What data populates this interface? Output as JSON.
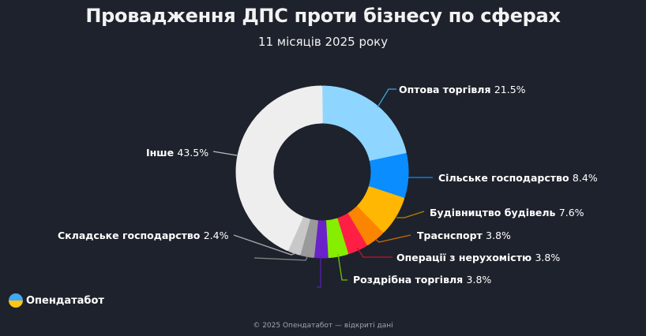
{
  "header": {
    "title": "Провадження ДПС проти бізнесу по сферах",
    "subtitle": "11 місяців 2025 року"
  },
  "logo": {
    "icon": "opendatabot-logo-icon",
    "text": "Опендатабот"
  },
  "footer": {
    "text": "© 2025 Опендатабот — відкриті дані"
  },
  "chart_data": {
    "type": "pie",
    "subtype": "donut",
    "title": "Провадження ДПС проти бізнесу по сферах",
    "subtitle": "11 місяців 2025 року",
    "unit": "%",
    "slices": [
      {
        "label": "Оптова торгівля",
        "value": 21.5,
        "color": "#8ed6ff",
        "pct_text": "21.5%"
      },
      {
        "label": "Сільське господарство",
        "value": 8.4,
        "color": "#0a8dff",
        "pct_text": "8.4%"
      },
      {
        "label": "Будівництво будівель",
        "value": 7.6,
        "color": "#ffb703",
        "pct_text": "7.6%"
      },
      {
        "label": "Траснспорт",
        "value": 3.8,
        "color": "#fb8500",
        "pct_text": "3.8%"
      },
      {
        "label": "Операції з нерухомістю",
        "value": 3.8,
        "color": "#ff1f45",
        "pct_text": "3.8%"
      },
      {
        "label": "Роздрібна торгівля",
        "value": 3.8,
        "color": "#86ee00",
        "pct_text": "3.8%"
      },
      {
        "label": "",
        "value": 2.6,
        "color": "#6a22c9",
        "pct_text": ""
      },
      {
        "label": "",
        "value": 2.6,
        "color": "#9a9a9a",
        "pct_text": ""
      },
      {
        "label": "Складське господарство",
        "value": 2.4,
        "color": "#c8c8c8",
        "pct_text": "2.4%"
      },
      {
        "label": "Інше",
        "value": 43.5,
        "color": "#eeeeee",
        "pct_text": "43.5%"
      }
    ]
  },
  "labels": [
    {
      "name": "Оптова торгівля",
      "pct": "21.5%"
    },
    {
      "name": "Сільське господарство",
      "pct": "8.4%"
    },
    {
      "name": "Будівництво будівель",
      "pct": "7.6%"
    },
    {
      "name": "Траснспорт",
      "pct": "3.8%"
    },
    {
      "name": "Операції з нерухомістю",
      "pct": "3.8%"
    },
    {
      "name": "Роздрібна торгівля",
      "pct": "3.8%"
    },
    {
      "name": "Складське господарство",
      "pct": "2.4%"
    },
    {
      "name": "Інше",
      "pct": "43.5%"
    }
  ]
}
